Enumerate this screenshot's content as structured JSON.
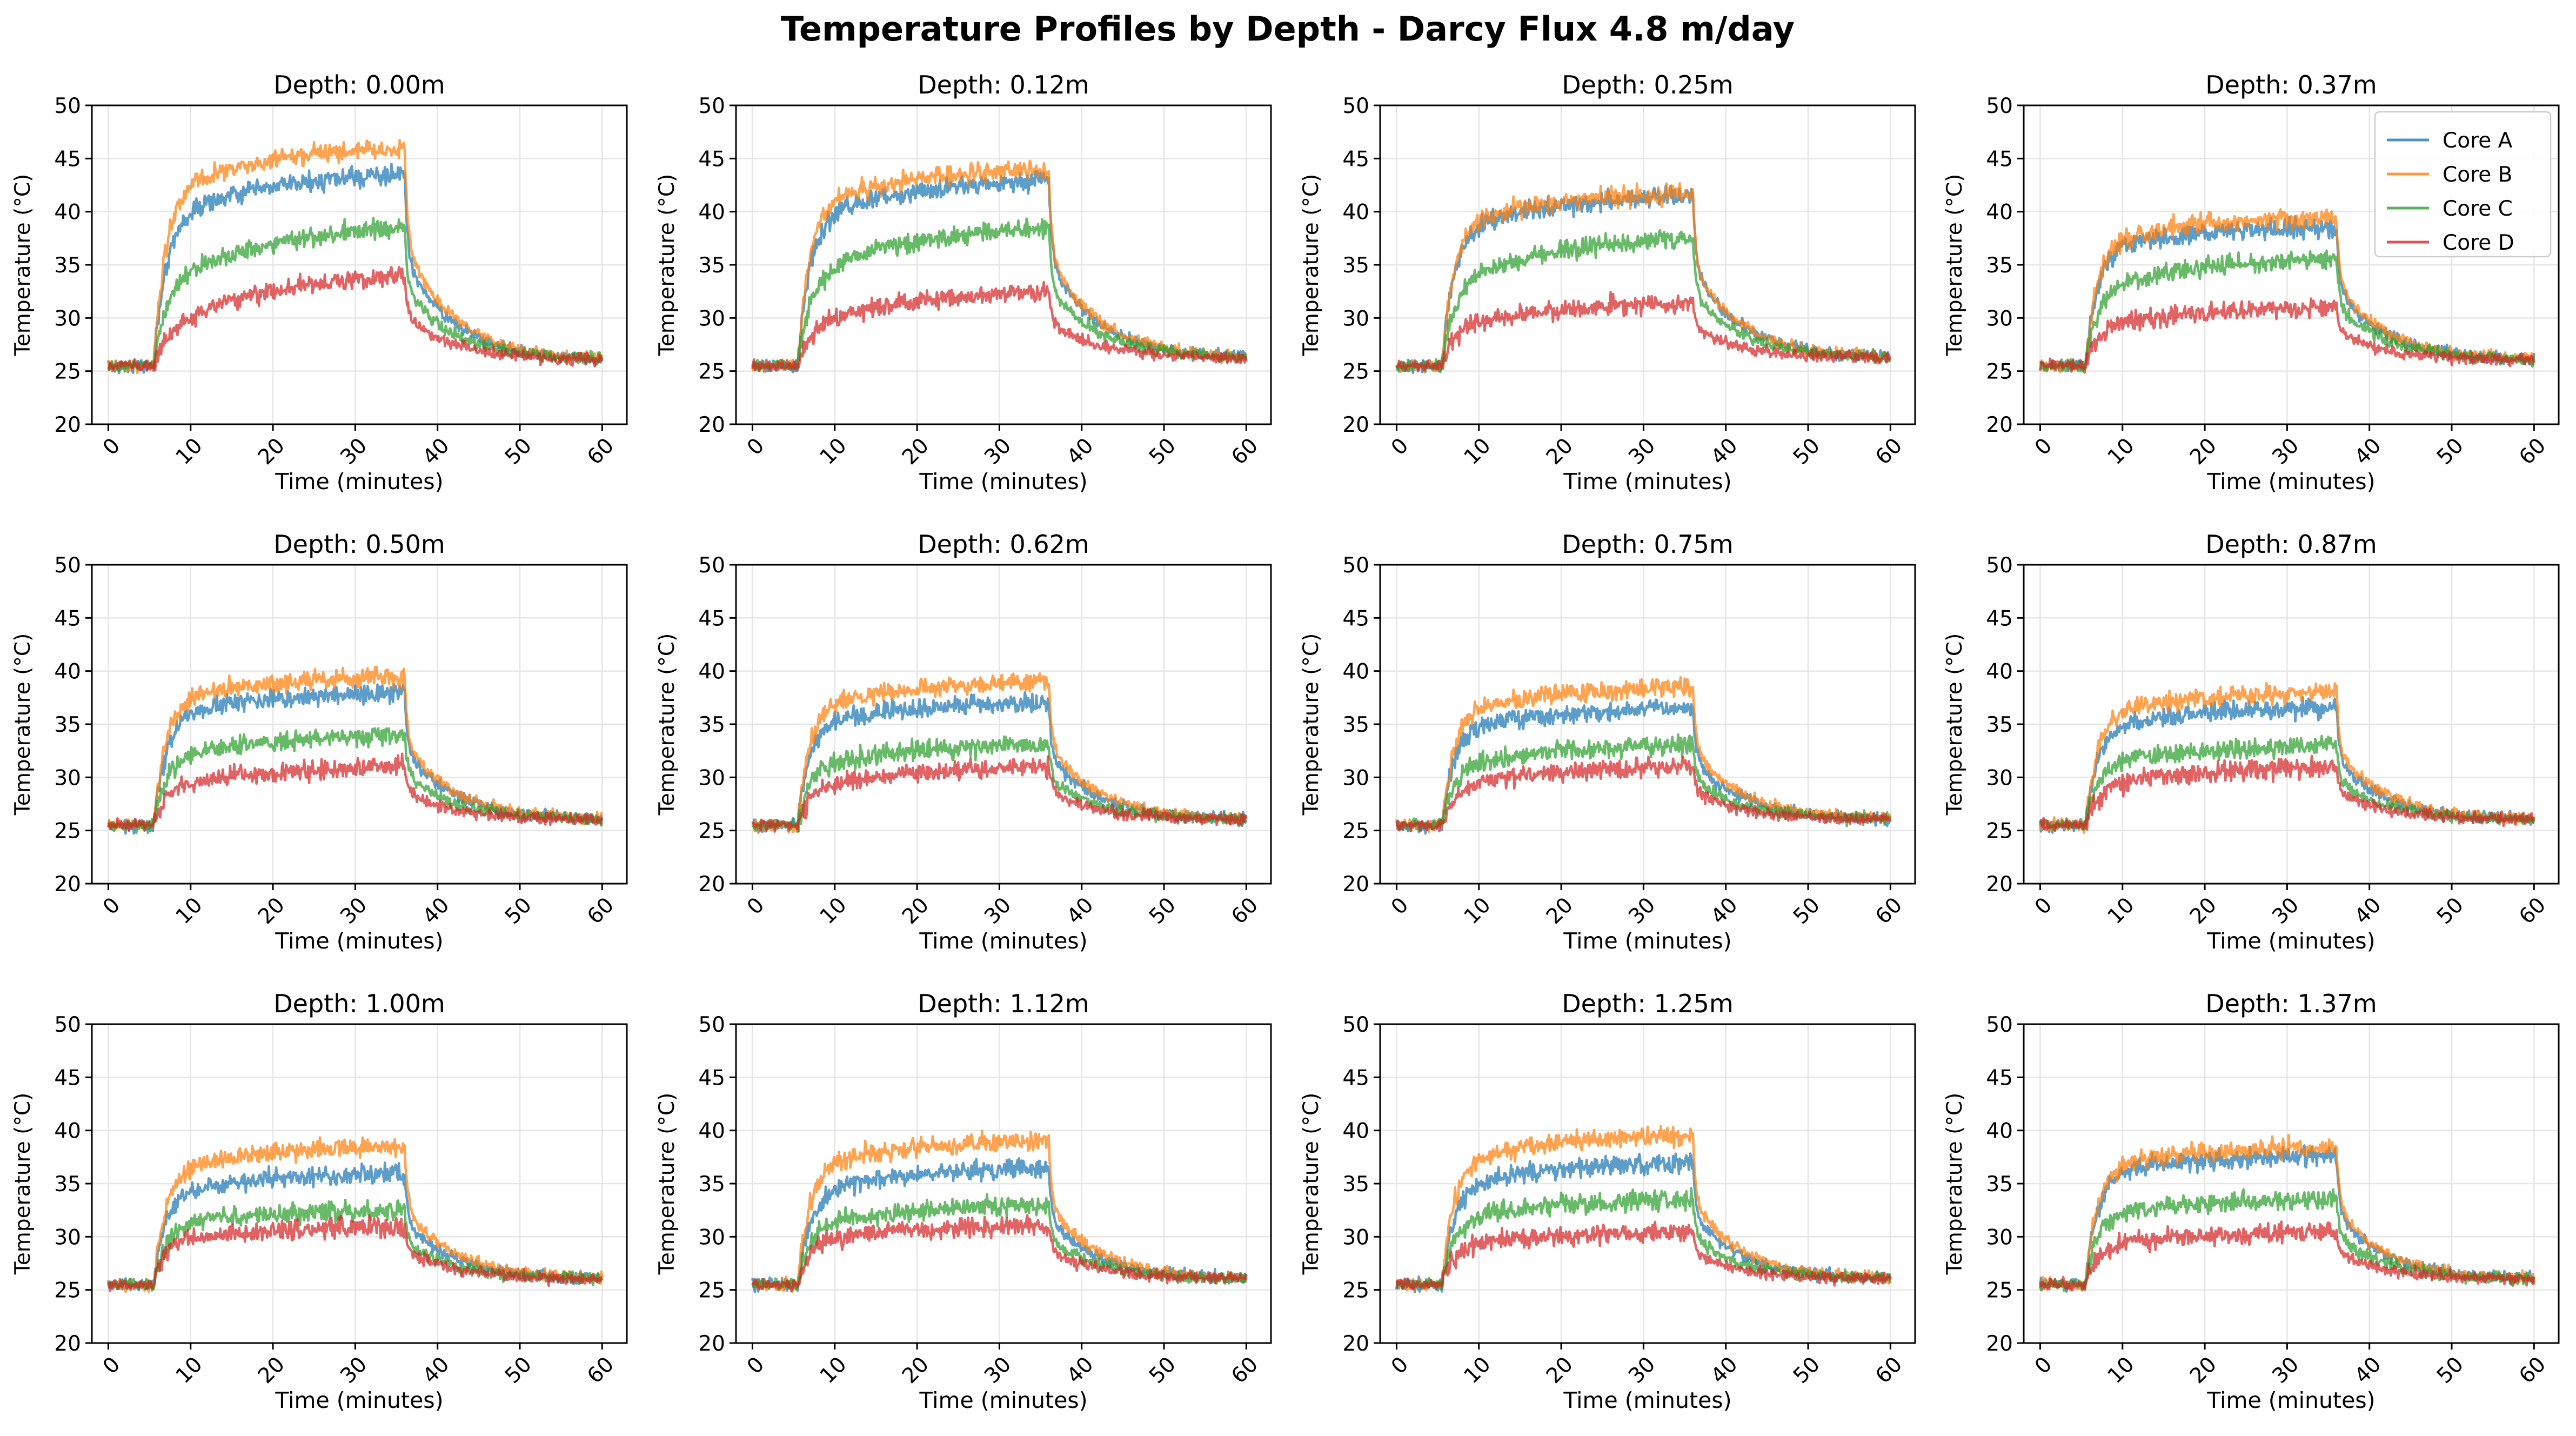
{
  "figure": {
    "title": "Temperature Profiles by Depth - Darcy Flux 4.8 m/day"
  },
  "colors": {
    "Core A": "#1f77b4",
    "Core B": "#ff7f0e",
    "Core C": "#2ca02c",
    "Core D": "#d62728",
    "grid": "#e6e6e6",
    "axes": "#000000"
  },
  "legend": {
    "placement": "upper-right of Depth: 0.37m panel",
    "entries": [
      "Core A",
      "Core B",
      "Core C",
      "Core D"
    ]
  },
  "chart_data": [
    {
      "type": "line",
      "title": "Depth: 0.00m",
      "xlabel": "Time (minutes)",
      "ylabel": "Temperature (°C)",
      "xlim": [
        -2,
        63
      ],
      "ylim": [
        20,
        50
      ],
      "xticks": [
        0,
        10,
        20,
        30,
        40,
        50,
        60
      ],
      "yticks": [
        20,
        25,
        30,
        35,
        40,
        45,
        50
      ],
      "grid": true,
      "baseline": 25.5,
      "on_time": 5.5,
      "off_time": 36,
      "end_temp": 26,
      "series": [
        {
          "name": "Core A",
          "plateau_start": 39.0,
          "plateau_end": 43.5
        },
        {
          "name": "Core B",
          "plateau_start": 41.5,
          "plateau_end": 46.0
        },
        {
          "name": "Core C",
          "plateau_start": 33.0,
          "plateau_end": 38.5
        },
        {
          "name": "Core D",
          "plateau_start": 28.5,
          "plateau_end": 34.0
        }
      ]
    },
    {
      "type": "line",
      "title": "Depth: 0.12m",
      "xlabel": "Time (minutes)",
      "ylabel": "Temperature (°C)",
      "xlim": [
        -2,
        63
      ],
      "ylim": [
        20,
        50
      ],
      "xticks": [
        0,
        10,
        20,
        30,
        40,
        50,
        60
      ],
      "yticks": [
        20,
        25,
        30,
        35,
        40,
        45,
        50
      ],
      "grid": true,
      "baseline": 25.5,
      "on_time": 5.5,
      "off_time": 36,
      "end_temp": 26.2,
      "series": [
        {
          "name": "Core A",
          "plateau_start": 39.0,
          "plateau_end": 43.0
        },
        {
          "name": "Core B",
          "plateau_start": 40.5,
          "plateau_end": 44.0
        },
        {
          "name": "Core C",
          "plateau_start": 33.5,
          "plateau_end": 38.5
        },
        {
          "name": "Core D",
          "plateau_start": 29.0,
          "plateau_end": 32.5
        }
      ]
    },
    {
      "type": "line",
      "title": "Depth: 0.25m",
      "xlabel": "Time (minutes)",
      "ylabel": "Temperature (°C)",
      "xlim": [
        -2,
        63
      ],
      "ylim": [
        20,
        50
      ],
      "xticks": [
        0,
        10,
        20,
        30,
        40,
        50,
        60
      ],
      "yticks": [
        20,
        25,
        30,
        35,
        40,
        45,
        50
      ],
      "grid": true,
      "baseline": 25.5,
      "on_time": 5.5,
      "off_time": 36,
      "end_temp": 26.2,
      "series": [
        {
          "name": "Core A",
          "plateau_start": 38.0,
          "plateau_end": 41.5
        },
        {
          "name": "Core B",
          "plateau_start": 38.5,
          "plateau_end": 41.8
        },
        {
          "name": "Core C",
          "plateau_start": 33.0,
          "plateau_end": 37.5
        },
        {
          "name": "Core D",
          "plateau_start": 29.0,
          "plateau_end": 31.5
        }
      ]
    },
    {
      "type": "line",
      "title": "Depth: 0.37m",
      "xlabel": "Time (minutes)",
      "ylabel": "Temperature (°C)",
      "xlim": [
        -2,
        63
      ],
      "ylim": [
        20,
        50
      ],
      "xticks": [
        0,
        10,
        20,
        30,
        40,
        50,
        60
      ],
      "yticks": [
        20,
        25,
        30,
        35,
        40,
        45,
        50
      ],
      "grid": true,
      "baseline": 25.5,
      "on_time": 5.5,
      "off_time": 36,
      "end_temp": 26,
      "series": [
        {
          "name": "Core A",
          "plateau_start": 36.5,
          "plateau_end": 38.5
        },
        {
          "name": "Core B",
          "plateau_start": 37.0,
          "plateau_end": 39.5
        },
        {
          "name": "Core C",
          "plateau_start": 32.5,
          "plateau_end": 35.5
        },
        {
          "name": "Core D",
          "plateau_start": 29.0,
          "plateau_end": 31.0
        }
      ]
    },
    {
      "type": "line",
      "title": "Depth: 0.50m",
      "xlabel": "Time (minutes)",
      "ylabel": "Temperature (°C)",
      "xlim": [
        -2,
        63
      ],
      "ylim": [
        20,
        50
      ],
      "xticks": [
        0,
        10,
        20,
        30,
        40,
        50,
        60
      ],
      "yticks": [
        20,
        25,
        30,
        35,
        40,
        45,
        50
      ],
      "grid": true,
      "baseline": 25.5,
      "on_time": 5.5,
      "off_time": 36,
      "end_temp": 26,
      "series": [
        {
          "name": "Core A",
          "plateau_start": 35.5,
          "plateau_end": 38.0
        },
        {
          "name": "Core B",
          "plateau_start": 37.0,
          "plateau_end": 39.5
        },
        {
          "name": "Core C",
          "plateau_start": 31.5,
          "plateau_end": 34.0
        },
        {
          "name": "Core D",
          "plateau_start": 29.0,
          "plateau_end": 31.0
        }
      ]
    },
    {
      "type": "line",
      "title": "Depth: 0.62m",
      "xlabel": "Time (minutes)",
      "ylabel": "Temperature (°C)",
      "xlim": [
        -2,
        63
      ],
      "ylim": [
        20,
        50
      ],
      "xticks": [
        0,
        10,
        20,
        30,
        40,
        50,
        60
      ],
      "yticks": [
        20,
        25,
        30,
        35,
        40,
        45,
        50
      ],
      "grid": true,
      "baseline": 25.5,
      "on_time": 5.5,
      "off_time": 36,
      "end_temp": 26,
      "series": [
        {
          "name": "Core A",
          "plateau_start": 35.0,
          "plateau_end": 37.0
        },
        {
          "name": "Core B",
          "plateau_start": 36.5,
          "plateau_end": 39.0
        },
        {
          "name": "Core C",
          "plateau_start": 31.0,
          "plateau_end": 33.0
        },
        {
          "name": "Core D",
          "plateau_start": 29.0,
          "plateau_end": 31.0
        }
      ]
    },
    {
      "type": "line",
      "title": "Depth: 0.75m",
      "xlabel": "Time (minutes)",
      "ylabel": "Temperature (°C)",
      "xlim": [
        -2,
        63
      ],
      "ylim": [
        20,
        50
      ],
      "xticks": [
        0,
        10,
        20,
        30,
        40,
        50,
        60
      ],
      "yticks": [
        20,
        25,
        30,
        35,
        40,
        45,
        50
      ],
      "grid": true,
      "baseline": 25.5,
      "on_time": 5.5,
      "off_time": 36,
      "end_temp": 26,
      "series": [
        {
          "name": "Core A",
          "plateau_start": 34.5,
          "plateau_end": 36.5
        },
        {
          "name": "Core B",
          "plateau_start": 36.0,
          "plateau_end": 38.5
        },
        {
          "name": "Core C",
          "plateau_start": 31.0,
          "plateau_end": 33.0
        },
        {
          "name": "Core D",
          "plateau_start": 29.0,
          "plateau_end": 31.0
        }
      ]
    },
    {
      "type": "line",
      "title": "Depth: 0.87m",
      "xlabel": "Time (minutes)",
      "ylabel": "Temperature (°C)",
      "xlim": [
        -2,
        63
      ],
      "ylim": [
        20,
        50
      ],
      "xticks": [
        0,
        10,
        20,
        30,
        40,
        50,
        60
      ],
      "yticks": [
        20,
        25,
        30,
        35,
        40,
        45,
        50
      ],
      "grid": true,
      "baseline": 25.5,
      "on_time": 5.5,
      "off_time": 36,
      "end_temp": 26,
      "series": [
        {
          "name": "Core A",
          "plateau_start": 34.5,
          "plateau_end": 36.5
        },
        {
          "name": "Core B",
          "plateau_start": 36.0,
          "plateau_end": 38.0
        },
        {
          "name": "Core C",
          "plateau_start": 31.0,
          "plateau_end": 33.0
        },
        {
          "name": "Core D",
          "plateau_start": 29.0,
          "plateau_end": 31.0
        }
      ]
    },
    {
      "type": "line",
      "title": "Depth: 1.00m",
      "xlabel": "Time (minutes)",
      "ylabel": "Temperature (°C)",
      "xlim": [
        -2,
        63
      ],
      "ylim": [
        20,
        50
      ],
      "xticks": [
        0,
        10,
        20,
        30,
        40,
        50,
        60
      ],
      "yticks": [
        20,
        25,
        30,
        35,
        40,
        45,
        50
      ],
      "grid": true,
      "baseline": 25.5,
      "on_time": 5.5,
      "off_time": 36,
      "end_temp": 26,
      "series": [
        {
          "name": "Core A",
          "plateau_start": 34.0,
          "plateau_end": 36.0
        },
        {
          "name": "Core B",
          "plateau_start": 36.0,
          "plateau_end": 38.5
        },
        {
          "name": "Core C",
          "plateau_start": 31.0,
          "plateau_end": 32.5
        },
        {
          "name": "Core D",
          "plateau_start": 29.5,
          "plateau_end": 31.0
        }
      ]
    },
    {
      "type": "line",
      "title": "Depth: 1.12m",
      "xlabel": "Time (minutes)",
      "ylabel": "Temperature (°C)",
      "xlim": [
        -2,
        63
      ],
      "ylim": [
        20,
        50
      ],
      "xticks": [
        0,
        10,
        20,
        30,
        40,
        50,
        60
      ],
      "yticks": [
        20,
        25,
        30,
        35,
        40,
        45,
        50
      ],
      "grid": true,
      "baseline": 25.5,
      "on_time": 5.5,
      "off_time": 36,
      "end_temp": 26,
      "series": [
        {
          "name": "Core A",
          "plateau_start": 34.0,
          "plateau_end": 36.5
        },
        {
          "name": "Core B",
          "plateau_start": 36.5,
          "plateau_end": 39.0
        },
        {
          "name": "Core C",
          "plateau_start": 31.0,
          "plateau_end": 33.0
        },
        {
          "name": "Core D",
          "plateau_start": 29.5,
          "plateau_end": 31.0
        }
      ]
    },
    {
      "type": "line",
      "title": "Depth: 1.25m",
      "xlabel": "Time (minutes)",
      "ylabel": "Temperature (°C)",
      "xlim": [
        -2,
        63
      ],
      "ylim": [
        20,
        50
      ],
      "xticks": [
        0,
        10,
        20,
        30,
        40,
        50,
        60
      ],
      "yticks": [
        20,
        25,
        30,
        35,
        40,
        45,
        50
      ],
      "grid": true,
      "baseline": 25.5,
      "on_time": 5.5,
      "off_time": 36,
      "end_temp": 26,
      "series": [
        {
          "name": "Core A",
          "plateau_start": 34.5,
          "plateau_end": 37.0
        },
        {
          "name": "Core B",
          "plateau_start": 37.0,
          "plateau_end": 39.5
        },
        {
          "name": "Core C",
          "plateau_start": 31.5,
          "plateau_end": 33.5
        },
        {
          "name": "Core D",
          "plateau_start": 29.0,
          "plateau_end": 30.5
        }
      ]
    },
    {
      "type": "line",
      "title": "Depth: 1.37m",
      "xlabel": "Time (minutes)",
      "ylabel": "Temperature (°C)",
      "xlim": [
        -2,
        63
      ],
      "ylim": [
        20,
        50
      ],
      "xticks": [
        0,
        10,
        20,
        30,
        40,
        50,
        60
      ],
      "yticks": [
        20,
        25,
        30,
        35,
        40,
        45,
        50
      ],
      "grid": true,
      "baseline": 25.5,
      "on_time": 5.5,
      "off_time": 36,
      "end_temp": 26,
      "series": [
        {
          "name": "Core A",
          "plateau_start": 36.0,
          "plateau_end": 37.5
        },
        {
          "name": "Core B",
          "plateau_start": 36.5,
          "plateau_end": 38.5
        },
        {
          "name": "Core C",
          "plateau_start": 32.0,
          "plateau_end": 33.5
        },
        {
          "name": "Core D",
          "plateau_start": 29.0,
          "plateau_end": 30.5
        }
      ]
    }
  ]
}
